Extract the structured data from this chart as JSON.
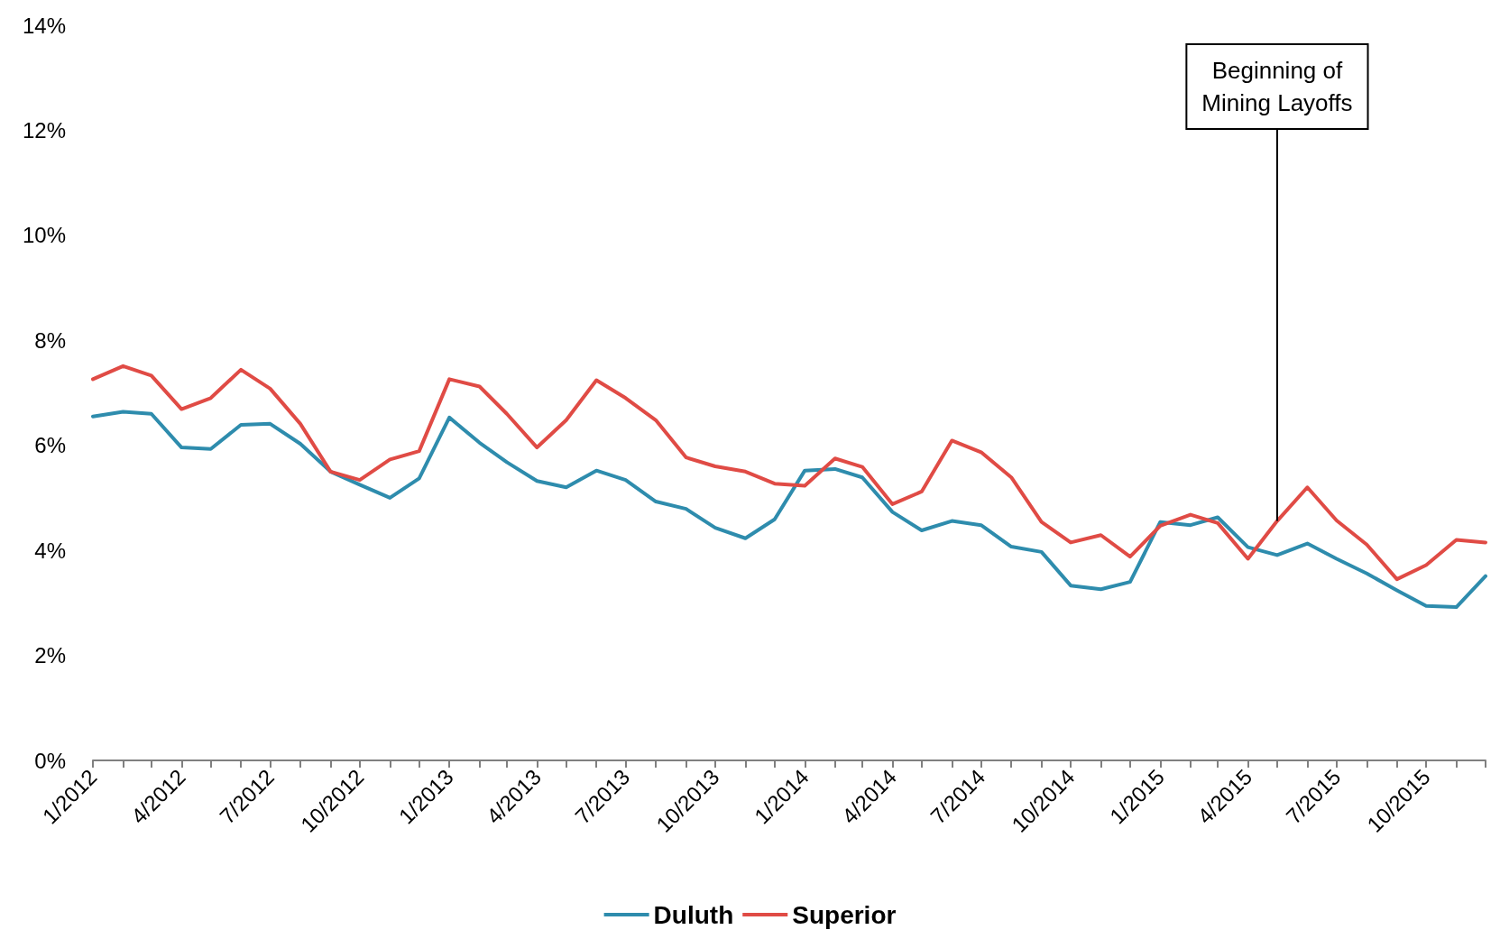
{
  "chart_data": {
    "type": "line",
    "x": [
      "2012-01",
      "2012-02",
      "2012-03",
      "2012-04",
      "2012-05",
      "2012-06",
      "2012-07",
      "2012-08",
      "2012-09",
      "2012-10",
      "2012-11",
      "2012-12",
      "2013-01",
      "2013-02",
      "2013-03",
      "2013-04",
      "2013-05",
      "2013-06",
      "2013-07",
      "2013-08",
      "2013-09",
      "2013-10",
      "2013-11",
      "2013-12",
      "2014-01",
      "2014-02",
      "2014-03",
      "2014-04",
      "2014-05",
      "2014-06",
      "2014-07",
      "2014-08",
      "2014-09",
      "2014-10",
      "2014-11",
      "2014-12",
      "2015-01",
      "2015-02",
      "2015-03",
      "2015-04",
      "2015-05",
      "2015-06",
      "2015-07",
      "2015-08",
      "2015-09",
      "2015-10",
      "2015-11",
      "2015-12"
    ],
    "series": [
      {
        "name": "Duluth",
        "color": "#2e8cad",
        "values": [
          6.55,
          6.64,
          6.6,
          5.96,
          5.93,
          6.39,
          6.41,
          6.03,
          5.5,
          5.25,
          5.0,
          5.37,
          6.53,
          6.05,
          5.68,
          5.32,
          5.2,
          5.52,
          5.34,
          4.93,
          4.79,
          4.43,
          4.23,
          4.59,
          5.52,
          5.55,
          5.39,
          4.73,
          4.38,
          4.56,
          4.48,
          4.07,
          3.97,
          3.33,
          3.26,
          3.4,
          4.54,
          4.48,
          4.63,
          4.06,
          3.91,
          4.13,
          3.84,
          3.56,
          3.24,
          2.94,
          2.92,
          3.51
        ]
      },
      {
        "name": "Superior",
        "color": "#e04b45",
        "values": [
          7.26,
          7.51,
          7.33,
          6.69,
          6.9,
          7.44,
          7.08,
          6.41,
          5.5,
          5.34,
          5.73,
          5.89,
          7.26,
          7.12,
          6.6,
          5.96,
          6.48,
          7.24,
          6.9,
          6.48,
          5.77,
          5.6,
          5.5,
          5.27,
          5.23,
          5.75,
          5.59,
          4.88,
          5.12,
          6.09,
          5.87,
          5.39,
          4.54,
          4.15,
          4.29,
          3.88,
          4.47,
          4.68,
          4.52,
          3.84,
          4.56,
          5.2,
          4.57,
          4.11,
          3.45,
          3.72,
          4.2,
          4.15
        ]
      }
    ],
    "xlim": [
      "2012-01",
      "2015-12"
    ],
    "xticks": [
      {
        "value": "2012-01",
        "label": "1/2012"
      },
      {
        "value": "2012-02",
        "label": null
      },
      {
        "value": "2012-03",
        "label": null
      },
      {
        "value": "2012-04",
        "label": "4/2012"
      },
      {
        "value": "2012-05",
        "label": null
      },
      {
        "value": "2012-06",
        "label": null
      },
      {
        "value": "2012-07",
        "label": "7/2012"
      },
      {
        "value": "2012-08",
        "label": null
      },
      {
        "value": "2012-09",
        "label": null
      },
      {
        "value": "2012-10",
        "label": "10/2012"
      },
      {
        "value": "2012-11",
        "label": null
      },
      {
        "value": "2012-12",
        "label": null
      },
      {
        "value": "2013-01",
        "label": "1/2013"
      },
      {
        "value": "2013-02",
        "label": null
      },
      {
        "value": "2013-03",
        "label": null
      },
      {
        "value": "2013-04",
        "label": "4/2013"
      },
      {
        "value": "2013-05",
        "label": null
      },
      {
        "value": "2013-06",
        "label": null
      },
      {
        "value": "2013-07",
        "label": "7/2013"
      },
      {
        "value": "2013-08",
        "label": null
      },
      {
        "value": "2013-09",
        "label": null
      },
      {
        "value": "2013-10",
        "label": "10/2013"
      },
      {
        "value": "2013-11",
        "label": null
      },
      {
        "value": "2013-12",
        "label": null
      },
      {
        "value": "2014-01",
        "label": "1/2014"
      },
      {
        "value": "2014-02",
        "label": null
      },
      {
        "value": "2014-03",
        "label": null
      },
      {
        "value": "2014-04",
        "label": "4/2014"
      },
      {
        "value": "2014-05",
        "label": null
      },
      {
        "value": "2014-06",
        "label": null
      },
      {
        "value": "2014-07",
        "label": "7/2014"
      },
      {
        "value": "2014-08",
        "label": null
      },
      {
        "value": "2014-09",
        "label": null
      },
      {
        "value": "2014-10",
        "label": "10/2014"
      },
      {
        "value": "2014-11",
        "label": null
      },
      {
        "value": "2014-12",
        "label": null
      },
      {
        "value": "2015-01",
        "label": "1/2015"
      },
      {
        "value": "2015-02",
        "label": null
      },
      {
        "value": "2015-03",
        "label": null
      },
      {
        "value": "2015-04",
        "label": "4/2015"
      },
      {
        "value": "2015-05",
        "label": null
      },
      {
        "value": "2015-06",
        "label": null
      },
      {
        "value": "2015-07",
        "label": "7/2015"
      },
      {
        "value": "2015-08",
        "label": null
      },
      {
        "value": "2015-09",
        "label": null
      },
      {
        "value": "2015-10",
        "label": "10/2015"
      },
      {
        "value": "2015-11",
        "label": null
      },
      {
        "value": "2015-12",
        "label": null
      }
    ],
    "ylim": [
      0,
      14
    ],
    "yticks": [
      {
        "value": 0,
        "label": "0%"
      },
      {
        "value": 2,
        "label": "2%"
      },
      {
        "value": 4,
        "label": "4%"
      },
      {
        "value": 6,
        "label": "6%"
      },
      {
        "value": 8,
        "label": "8%"
      },
      {
        "value": 10,
        "label": "10%"
      },
      {
        "value": 12,
        "label": "12%"
      },
      {
        "value": 14,
        "label": "14%"
      }
    ],
    "annotations": [
      {
        "text": "Beginning of\nMining Layoffs",
        "x": "2015-05",
        "y": 4.56
      }
    ],
    "grid": false,
    "legend": "bottom",
    "marker": "none",
    "line_style": "solid"
  }
}
